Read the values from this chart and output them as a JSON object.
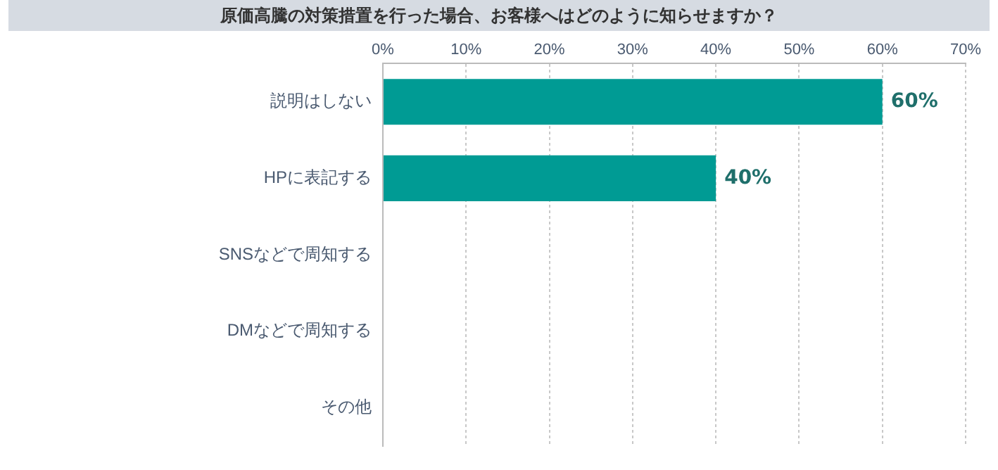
{
  "chart_data": {
    "type": "bar",
    "orientation": "horizontal",
    "title": "原価高騰の対策措置を行った場合、お客様へはどのように知らせますか？",
    "categories": [
      "説明はしない",
      "HPに表記する",
      "SNSなどで周知する",
      "DMなどで周知する",
      "その他"
    ],
    "values": [
      60,
      40,
      0,
      0,
      0
    ],
    "color": "#009b94",
    "value_labels": [
      "60%",
      "40%",
      null,
      null,
      null
    ],
    "xlim": [
      0,
      70
    ],
    "xticks": [
      {
        "value": 0,
        "label": "0%"
      },
      {
        "value": 10,
        "label": "10%"
      },
      {
        "value": 20,
        "label": "20%"
      },
      {
        "value": 30,
        "label": "30%"
      },
      {
        "value": 40,
        "label": "40%"
      },
      {
        "value": 50,
        "label": "50%"
      },
      {
        "value": 60,
        "label": "60%"
      },
      {
        "value": 70,
        "label": "70%"
      }
    ],
    "grid": "x",
    "legend": false
  }
}
